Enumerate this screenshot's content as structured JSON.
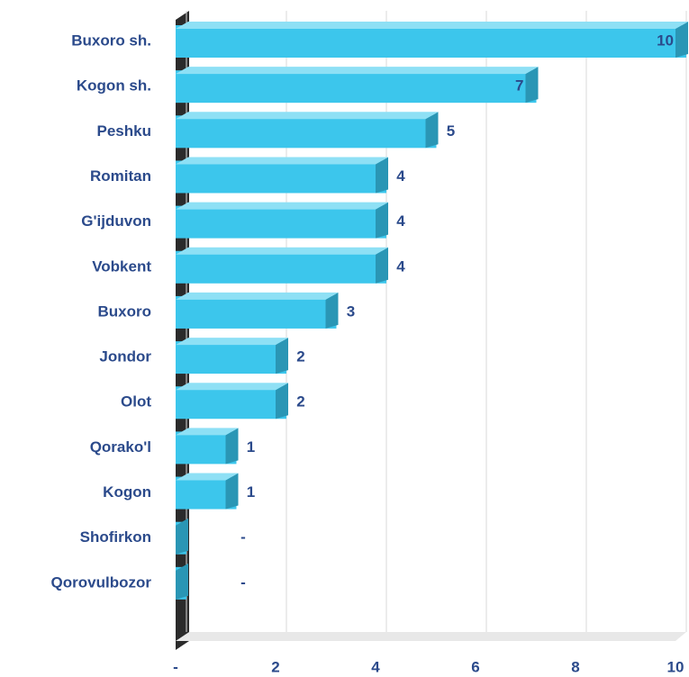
{
  "chart_data": {
    "type": "bar",
    "orientation": "horizontal",
    "categories": [
      "Buxoro sh.",
      "Kogon sh.",
      "Peshku",
      "Romitan",
      "G'ijduvon",
      "Vobkent",
      "Buxoro",
      "Jondor",
      "Olot",
      "Qorako'l",
      "Kogon",
      "Shofirkon",
      "Qorovulbozor"
    ],
    "values": [
      10,
      7,
      5,
      4,
      4,
      4,
      3,
      2,
      2,
      1,
      1,
      0,
      0
    ],
    "value_labels": [
      "10",
      "7",
      "5",
      "4",
      "4",
      "4",
      "3",
      "2",
      "2",
      "1",
      "1",
      "-",
      "-"
    ],
    "color": "#3cc6ec",
    "xlim": [
      0,
      10
    ],
    "xticks": [
      {
        "value": 0,
        "label": "-"
      },
      2,
      4,
      6,
      8,
      10
    ],
    "grid": true
  }
}
